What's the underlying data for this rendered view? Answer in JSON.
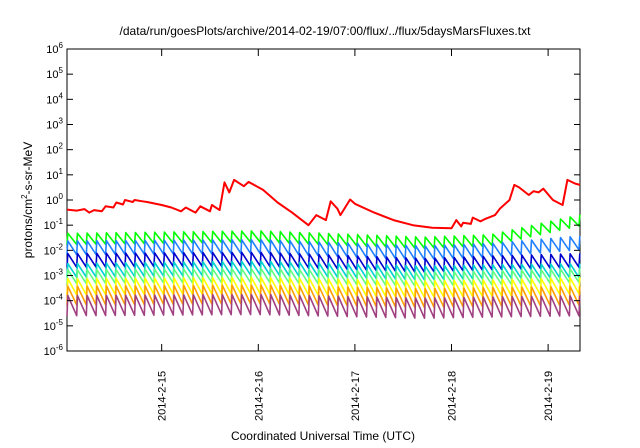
{
  "chart_data": {
    "type": "line",
    "title": "/data/run/goesPlots/archive/2014-02-19/07:00/flux/../flux/5daysMarsFluxes.txt",
    "xlabel": "Coordinated Universal Time (UTC)",
    "ylabel_base": "protons/cm",
    "ylabel_sup": "2",
    "ylabel_rest": "-s-sr-MeV",
    "y_scale": "log",
    "ylim_exp": [
      -6,
      6
    ],
    "y_tick_exponents": [
      -6,
      -5,
      -4,
      -3,
      -2,
      -1,
      0,
      1,
      2,
      3,
      4,
      5,
      6
    ],
    "y_tick_base": "10",
    "x_range_days": [
      14.02,
      19.33
    ],
    "x_ticks": [
      {
        "label": "2014-2-15",
        "day": 15
      },
      {
        "label": "2014-2-16",
        "day": 16
      },
      {
        "label": "2014-2-17",
        "day": 17
      },
      {
        "label": "2014-2-18",
        "day": 18
      },
      {
        "label": "2014-2-19",
        "day": 19
      }
    ],
    "grid": false,
    "legend": "none",
    "series": [
      {
        "color": "#ff0000",
        "points": [
          [
            14.02,
            -0.38
          ],
          [
            14.12,
            -0.42
          ],
          [
            14.2,
            -0.36
          ],
          [
            14.25,
            -0.5
          ],
          [
            14.3,
            -0.4
          ],
          [
            14.38,
            -0.45
          ],
          [
            14.42,
            -0.25
          ],
          [
            14.5,
            -0.3
          ],
          [
            14.53,
            -0.1
          ],
          [
            14.6,
            -0.18
          ],
          [
            14.62,
            0.0
          ],
          [
            14.7,
            -0.08
          ],
          [
            14.72,
            0.0
          ],
          [
            14.8,
            -0.05
          ],
          [
            14.85,
            -0.08
          ],
          [
            14.9,
            -0.12
          ],
          [
            15.0,
            -0.2
          ],
          [
            15.1,
            -0.3
          ],
          [
            15.2,
            -0.45
          ],
          [
            15.25,
            -0.3
          ],
          [
            15.35,
            -0.5
          ],
          [
            15.4,
            -0.25
          ],
          [
            15.5,
            -0.45
          ],
          [
            15.52,
            -0.2
          ],
          [
            15.6,
            -0.4
          ],
          [
            15.65,
            0.7
          ],
          [
            15.7,
            0.3
          ],
          [
            15.75,
            0.8
          ],
          [
            15.85,
            0.55
          ],
          [
            15.9,
            0.72
          ],
          [
            16.05,
            0.4
          ],
          [
            16.2,
            -0.1
          ],
          [
            16.35,
            -0.5
          ],
          [
            16.45,
            -0.8
          ],
          [
            16.52,
            -1.0
          ],
          [
            16.6,
            -0.6
          ],
          [
            16.7,
            -0.8
          ],
          [
            16.75,
            -0.05
          ],
          [
            16.82,
            -0.35
          ],
          [
            16.85,
            -0.6
          ],
          [
            16.95,
            0.02
          ],
          [
            17.0,
            -0.15
          ],
          [
            17.2,
            -0.5
          ],
          [
            17.4,
            -0.8
          ],
          [
            17.6,
            -1.0
          ],
          [
            17.8,
            -1.1
          ],
          [
            18.0,
            -1.12
          ],
          [
            18.05,
            -0.8
          ],
          [
            18.1,
            -1.05
          ],
          [
            18.12,
            -0.9
          ],
          [
            18.2,
            -0.95
          ],
          [
            18.22,
            -0.7
          ],
          [
            18.3,
            -0.85
          ],
          [
            18.35,
            -0.75
          ],
          [
            18.45,
            -0.6
          ],
          [
            18.5,
            -0.35
          ],
          [
            18.6,
            0.0
          ],
          [
            18.65,
            0.6
          ],
          [
            18.7,
            0.5
          ],
          [
            18.8,
            0.2
          ],
          [
            18.85,
            0.35
          ],
          [
            18.9,
            0.3
          ],
          [
            18.95,
            0.45
          ],
          [
            19.05,
            0.0
          ],
          [
            19.15,
            -0.2
          ],
          [
            19.2,
            0.8
          ],
          [
            19.28,
            0.65
          ],
          [
            19.33,
            0.6
          ]
        ]
      },
      {
        "color": "#00ff00",
        "base": -1.55,
        "amp": 0.45,
        "points": [
          [
            14.02,
            -1.55
          ],
          [
            16.0,
            -1.45
          ],
          [
            17.7,
            -1.7
          ],
          [
            18.4,
            -1.6
          ],
          [
            19.33,
            -0.8
          ]
        ]
      },
      {
        "color": "#2080ff",
        "base": -2.0,
        "amp": 0.55,
        "points": [
          [
            14.02,
            -1.9
          ],
          [
            16.0,
            -1.85
          ],
          [
            17.7,
            -2.1
          ],
          [
            18.4,
            -2.0
          ],
          [
            19.33,
            -1.7
          ]
        ]
      },
      {
        "color": "#0000cc",
        "base": -2.5,
        "amp": 0.55,
        "points": [
          [
            14.02,
            -2.4
          ],
          [
            16.0,
            -2.35
          ],
          [
            17.7,
            -2.6
          ],
          [
            18.4,
            -2.5
          ],
          [
            19.33,
            -2.4
          ]
        ]
      },
      {
        "color": "#00d0d0",
        "base": -2.85,
        "amp": 0.55,
        "points": [
          [
            14.02,
            -2.8
          ],
          [
            16.0,
            -2.7
          ],
          [
            17.7,
            -2.9
          ],
          [
            18.4,
            -2.85
          ],
          [
            19.33,
            -2.8
          ]
        ]
      },
      {
        "color": "#60ff80",
        "base": -3.1,
        "amp": 0.55,
        "points": [
          [
            14.02,
            -3.05
          ],
          [
            16.0,
            -3.0
          ],
          [
            17.7,
            -3.15
          ],
          [
            18.4,
            -3.1
          ],
          [
            19.33,
            -3.0
          ]
        ]
      },
      {
        "color": "#ffff00",
        "base": -3.5,
        "amp": 0.65,
        "points": [
          [
            14.02,
            -3.45
          ],
          [
            16.0,
            -3.4
          ],
          [
            17.7,
            -3.55
          ],
          [
            18.4,
            -3.5
          ],
          [
            19.33,
            -3.4
          ]
        ]
      },
      {
        "color": "#ffa000",
        "base": -3.85,
        "amp": 0.75,
        "points": [
          [
            14.02,
            -3.8
          ],
          [
            16.0,
            -3.75
          ],
          [
            17.7,
            -3.9
          ],
          [
            18.4,
            -3.85
          ],
          [
            19.33,
            -3.8
          ]
        ]
      },
      {
        "color": "#a04080",
        "base": -4.25,
        "amp": 0.8,
        "points": [
          [
            14.02,
            -4.2
          ],
          [
            16.0,
            -4.15
          ],
          [
            17.7,
            -4.3
          ],
          [
            18.4,
            -4.25
          ],
          [
            19.33,
            -4.2
          ]
        ]
      }
    ],
    "sawtooth_period_days": 0.1
  }
}
